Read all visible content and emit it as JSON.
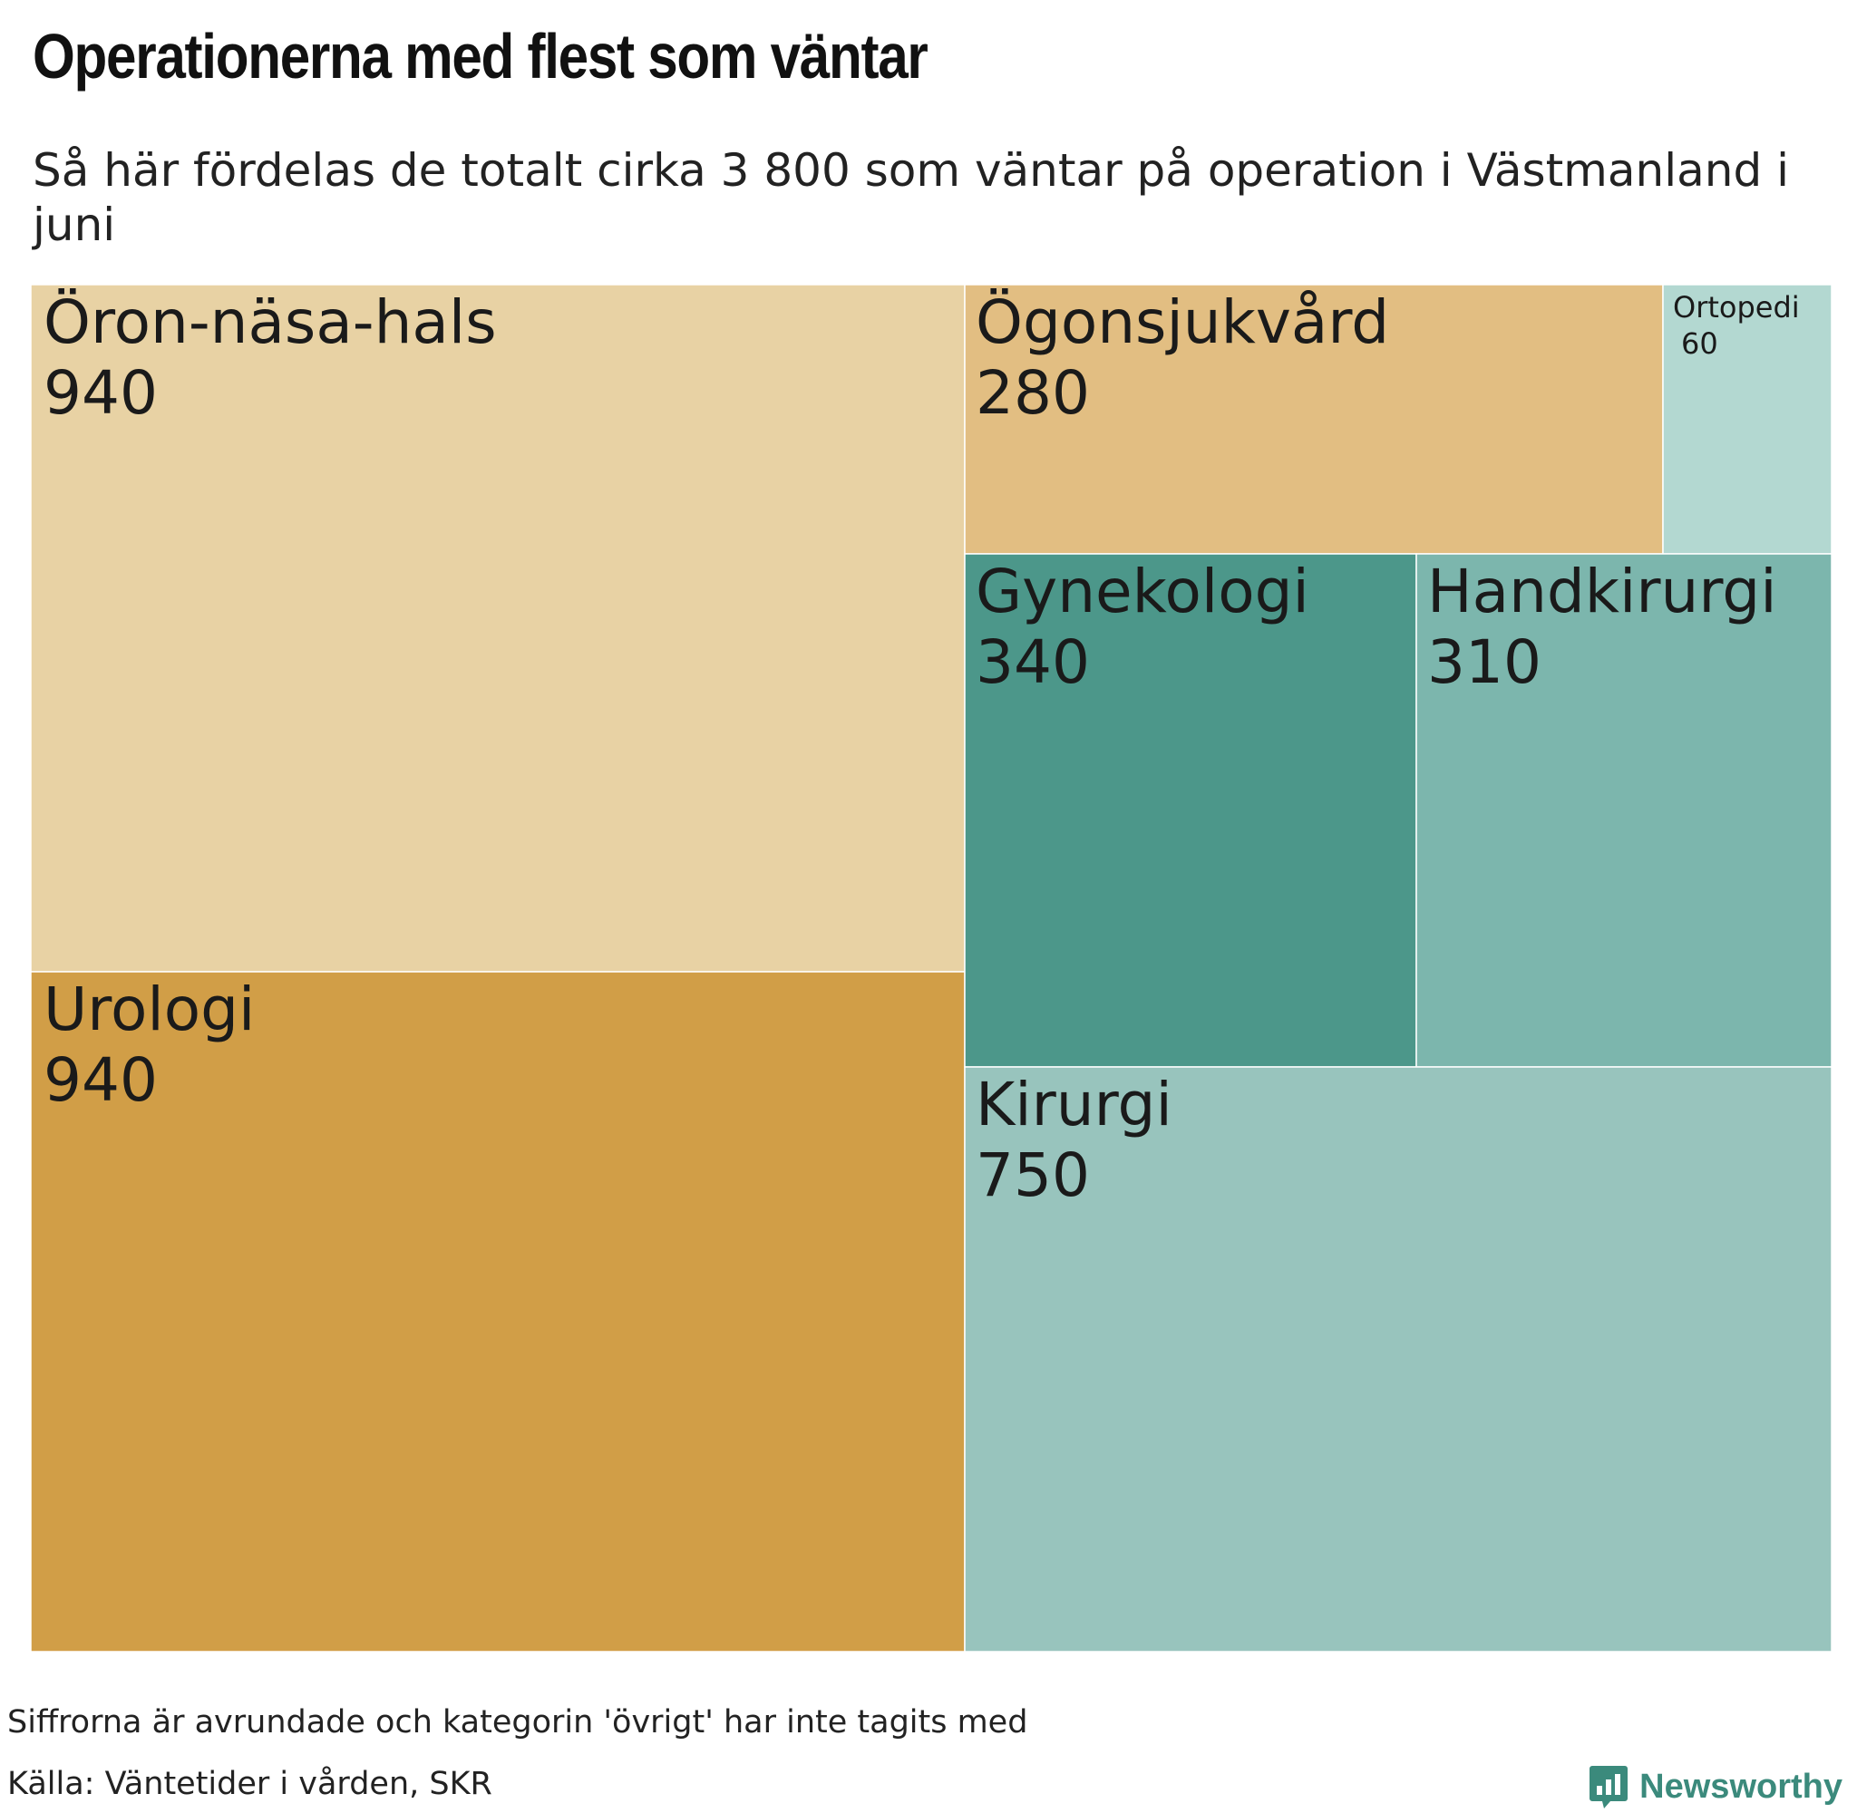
{
  "header": {
    "title": "Operationerna med flest som väntar",
    "subtitle": "Så här fördelas de totalt cirka 3 800 som väntar på operation i Västmanland i juni"
  },
  "chart_data": {
    "type": "treemap",
    "title": "Operationerna med flest som väntar",
    "subtitle": "Så här fördelas de totalt cirka 3 800 som väntar på operation i Västmanland i juni",
    "items": [
      {
        "name": "Öron-näsa-hals",
        "value": 940,
        "color": "#e8d2a4"
      },
      {
        "name": "Urologi",
        "value": 940,
        "color": "#d19e47"
      },
      {
        "name": "Ögonsjukvård",
        "value": 280,
        "color": "#e2be82"
      },
      {
        "name": "Ortopedi",
        "value": 60,
        "color": "#b3d8d1"
      },
      {
        "name": "Gynekologi",
        "value": 340,
        "color": "#4c978a"
      },
      {
        "name": "Handkirurgi",
        "value": 310,
        "color": "#7cb6ad"
      },
      {
        "name": "Kirurgi",
        "value": 750,
        "color": "#98c4bd"
      }
    ]
  },
  "footer": {
    "note": "Siffrorna är avrundade och kategorin 'övrigt' har inte tagits med",
    "source": "Källa: Väntetider i vården, SKR",
    "brand": "Newsworthy",
    "brand_color": "#3b8a7c",
    "brand_icon": "bar-chart-speech-bubble-icon"
  }
}
